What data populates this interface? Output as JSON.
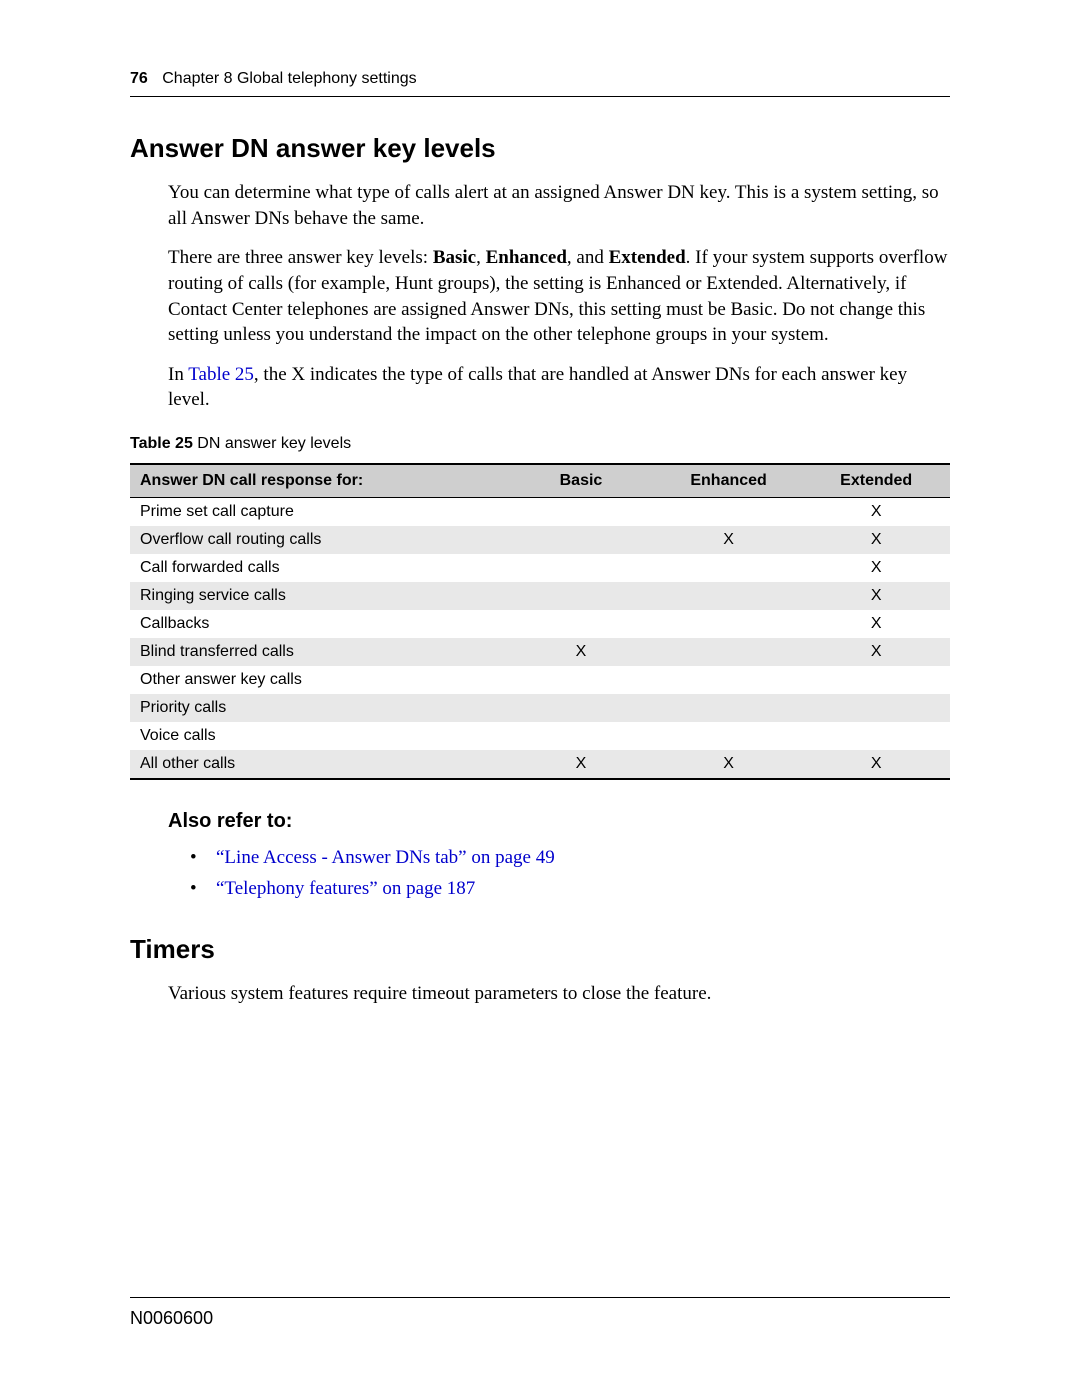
{
  "header": {
    "page_number": "76",
    "chapter": "Chapter 8  Global telephony settings"
  },
  "section1": {
    "title": "Answer DN answer key levels",
    "para1": "You can determine what type of calls alert at an assigned Answer DN key. This is a system setting, so all Answer DNs behave the same.",
    "para2_pre": "There are three answer key levels: ",
    "para2_b1": "Basic",
    "para2_sep1": ", ",
    "para2_b2": "Enhanced",
    "para2_sep2": ", and ",
    "para2_b3": "Extended",
    "para2_post": ". If your system supports overflow routing of calls (for example, Hunt groups), the setting is Enhanced or Extended. Alternatively, if Contact Center telephones are assigned Answer DNs, this setting must be Basic. Do not change this setting unless you understand the impact on the other telephone groups in your system.",
    "para3_pre": "In ",
    "para3_link": "Table 25",
    "para3_post": ", the X indicates the type of calls that are handled at Answer DNs for each answer key level."
  },
  "table": {
    "caption_label": "Table 25",
    "caption_text": "   DN answer key levels",
    "columns": [
      "Answer DN call response for:",
      "Basic",
      "Enhanced",
      "Extended"
    ],
    "rows": [
      {
        "label": "Prime set call capture",
        "basic": "",
        "enhanced": "",
        "extended": "X",
        "shade": false
      },
      {
        "label": "Overflow call routing calls",
        "basic": "",
        "enhanced": "X",
        "extended": "X",
        "shade": true
      },
      {
        "label": "Call forwarded calls",
        "basic": "",
        "enhanced": "",
        "extended": "X",
        "shade": false
      },
      {
        "label": "Ringing service calls",
        "basic": "",
        "enhanced": "",
        "extended": "X",
        "shade": true
      },
      {
        "label": "Callbacks",
        "basic": "",
        "enhanced": "",
        "extended": "X",
        "shade": false
      },
      {
        "label": "Blind transferred calls",
        "basic": "X",
        "enhanced": "",
        "extended": "X",
        "shade": true
      },
      {
        "label": "Other answer key calls",
        "basic": "",
        "enhanced": "",
        "extended": "",
        "shade": false
      },
      {
        "label": "Priority calls",
        "basic": "",
        "enhanced": "",
        "extended": "",
        "shade": true
      },
      {
        "label": "Voice calls",
        "basic": "",
        "enhanced": "",
        "extended": "",
        "shade": false
      },
      {
        "label": "All other calls",
        "basic": "X",
        "enhanced": "X",
        "extended": "X",
        "shade": true
      }
    ]
  },
  "refer": {
    "heading": "Also refer to:",
    "items": [
      "“Line Access - Answer DNs tab” on page 49",
      "“Telephony features” on page 187"
    ]
  },
  "section2": {
    "title": "Timers",
    "para1": "Various system features require timeout parameters to close the feature."
  },
  "footer": {
    "doc_id": "N0060600"
  },
  "style": {
    "link_color": "#0000cc",
    "header_shade": "#cfcfcf",
    "row_shade": "#e8e8e8",
    "body_font_size_pt": 14,
    "heading_font_size_pt": 20
  }
}
